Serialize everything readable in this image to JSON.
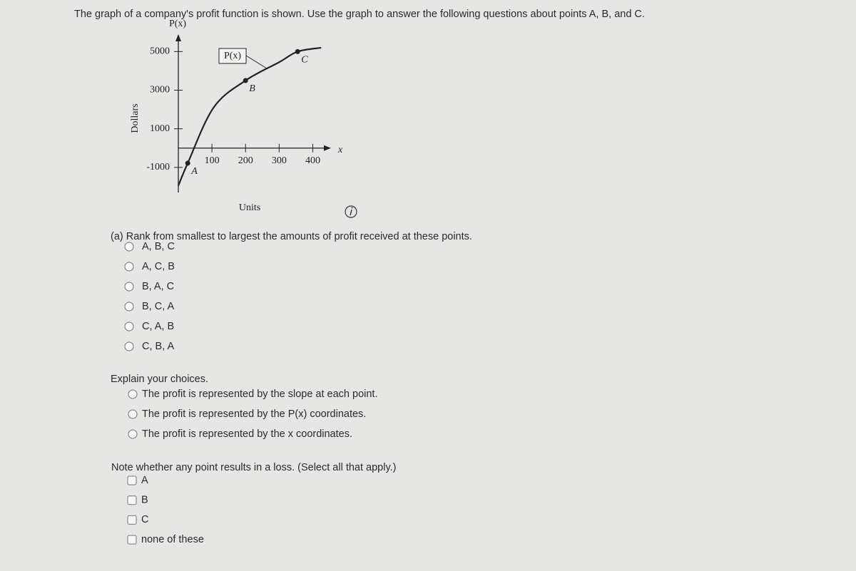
{
  "header": {
    "title": "The graph of a company's profit function is shown. Use the graph to answer the following questions about points A, B, and C."
  },
  "chart_data": {
    "type": "line",
    "y_axis_label": "P(x)",
    "y_title": "Dollars",
    "x_axis_label": "x",
    "x_title": "Units",
    "xlim": [
      0,
      450
    ],
    "ylim": [
      -2300,
      5900
    ],
    "xticks": [
      100,
      200,
      300,
      400
    ],
    "yticks": [
      -1000,
      1000,
      3000,
      5000
    ],
    "x": [
      0,
      28,
      105,
      200,
      300,
      355,
      425
    ],
    "series": [
      {
        "name": "P(x)",
        "color": "#222222",
        "values": [
          -1950,
          -780,
          2100,
          3500,
          4450,
          5000,
          5200
        ]
      }
    ],
    "points": [
      {
        "label": "A",
        "x": 28,
        "y": -780
      },
      {
        "label": "B",
        "x": 200,
        "y": 3500
      },
      {
        "label": "C",
        "x": 355,
        "y": 5000
      }
    ]
  },
  "part_a": {
    "prompt": "(a) Rank from smallest to largest the amounts of profit received at these points.",
    "options": [
      "A, B, C",
      "A, C, B",
      "B, A, C",
      "B, C, A",
      "C, A, B",
      "C, B, A"
    ]
  },
  "explain": {
    "prompt": "Explain your choices.",
    "options": [
      "The profit is represented by the slope at each point.",
      "The profit is represented by the P(x) coordinates.",
      "The profit is represented by the x coordinates."
    ]
  },
  "loss": {
    "prompt": "Note whether any point results in a loss. (Select all that apply.)",
    "options": [
      "A",
      "B",
      "C",
      "none of these"
    ]
  }
}
